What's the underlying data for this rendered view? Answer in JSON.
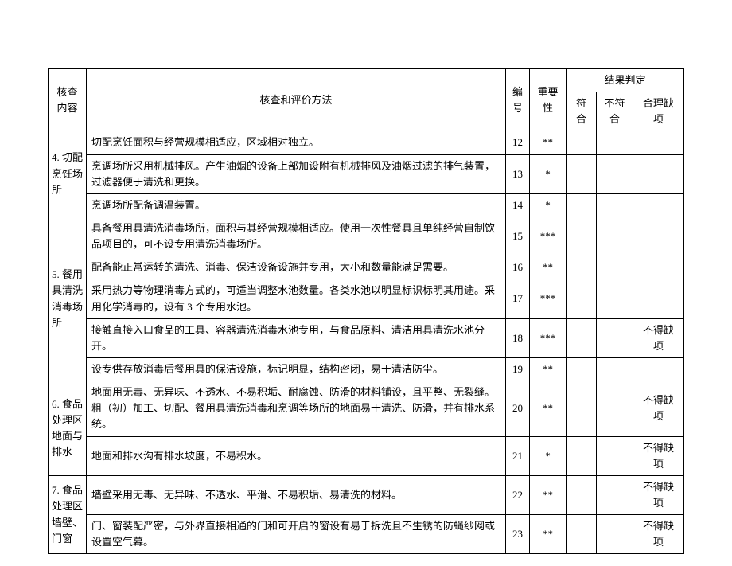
{
  "header": {
    "category": "核查内容",
    "method": "核查和评价方法",
    "number": "编号",
    "importance": "重要性",
    "result_group": "结果判定",
    "result_fit": "符合",
    "result_unfit": "不符合",
    "result_defect": "合理缺项"
  },
  "sections": [
    {
      "category": "4. 切配烹饪场所",
      "rows": [
        {
          "method": "切配烹饪面积与经营规模相适应，区域相对独立。",
          "num": "12",
          "imp": "**",
          "fit": "",
          "unfit": "",
          "def": ""
        },
        {
          "method": "烹调场所采用机械排风。产生油烟的设备上部加设附有机械排风及油烟过滤的排气装置，过滤器便于清洗和更换。",
          "num": "13",
          "imp": "*",
          "fit": "",
          "unfit": "",
          "def": ""
        },
        {
          "method": "烹调场所配备调温装置。",
          "num": "14",
          "imp": "*",
          "fit": "",
          "unfit": "",
          "def": ""
        }
      ]
    },
    {
      "category": "5. 餐用具清洗消毒场所",
      "rows": [
        {
          "method": "具备餐用具清洗消毒场所，面积与其经营规模相适应。使用一次性餐具且单纯经营自制饮品项目的，可不设专用清洗消毒场所。",
          "num": "15",
          "imp": "***",
          "fit": "",
          "unfit": "",
          "def": ""
        },
        {
          "method": "配备能正常运转的清洗、消毒、保洁设备设施并专用，大小和数量能满足需要。",
          "num": "16",
          "imp": "**",
          "fit": "",
          "unfit": "",
          "def": ""
        },
        {
          "method": "采用热力等物理消毒方式的，可适当调整水池数量。各类水池以明显标识标明其用途。采用化学消毒的，设有 3 个专用水池。",
          "num": "17",
          "imp": "***",
          "fit": "",
          "unfit": "",
          "def": ""
        },
        {
          "method": "接触直接入口食品的工具、容器清洗消毒水池专用，与食品原料、清洁用具清洗水池分开。",
          "num": "18",
          "imp": "***",
          "fit": "",
          "unfit": "",
          "def": "不得缺项"
        },
        {
          "method": "设专供存放消毒后餐用具的保洁设施，标记明显，结构密闭，易于清洁防尘。",
          "num": "19",
          "imp": "**",
          "fit": "",
          "unfit": "",
          "def": ""
        }
      ]
    },
    {
      "category": "6. 食品处理区地面与排水",
      "rows": [
        {
          "method": "地面用无毒、无异味、不透水、不易积垢、耐腐蚀、防滑的材料铺设，且平整、无裂缝。粗（初）加工、切配、餐用具清洗消毒和烹调等场所的地面易于清洗、防滑，并有排水系统。",
          "num": "20",
          "imp": "**",
          "fit": "",
          "unfit": "",
          "def": "不得缺项"
        },
        {
          "method": "地面和排水沟有排水坡度，不易积水。",
          "num": "21",
          "imp": "*",
          "fit": "",
          "unfit": "",
          "def": "不得缺项"
        }
      ]
    },
    {
      "category": "7. 食品处理区墙壁、门窗",
      "rows": [
        {
          "method": "墙壁采用无毒、无异味、不透水、平滑、不易积垢、易清洗的材料。",
          "num": "22",
          "imp": "**",
          "fit": "",
          "unfit": "",
          "def": "不得缺项"
        },
        {
          "method": "门、窗装配严密，与外界直接相通的门和可开启的窗设有易于拆洗且不生锈的防蝇纱网或设置空气幕。",
          "num": "23",
          "imp": "**",
          "fit": "",
          "unfit": "",
          "def": "不得缺项"
        }
      ]
    }
  ]
}
